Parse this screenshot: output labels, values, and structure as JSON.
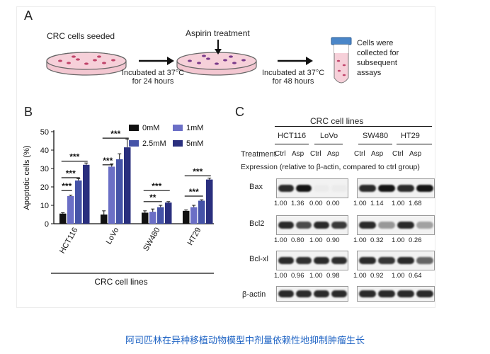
{
  "panel_a": {
    "letter": "A",
    "step1": "CRC cells seeded",
    "step2": "Aspirin treatment",
    "incubate1_line1": "Incubated at 37°C",
    "incubate1_line2": "for 24 hours",
    "incubate2_line1": "Incubated at 37°C",
    "incubate2_line2": "for 48 hours",
    "collected_lines": [
      "Cells were",
      "collected for",
      "subsequent",
      "assays"
    ]
  },
  "panel_b": {
    "letter": "B",
    "ylabel": "Apoptotic cells (%)",
    "xlabel": "CRC cell lines",
    "legend": [
      "0mM",
      "1mM",
      "2.5mM",
      "5mM"
    ],
    "significance": {
      "HCT116": [
        "***",
        "***",
        "***"
      ],
      "LoVo": [
        "***",
        "***"
      ],
      "SW480": [
        "**",
        "***"
      ],
      "HT29": [
        "***",
        "***"
      ]
    }
  },
  "chart_data": {
    "type": "bar",
    "categories": [
      "HCT116",
      "LoVo",
      "SW480",
      "HT29"
    ],
    "series": [
      {
        "name": "0mM",
        "values": [
          5.5,
          5,
          6,
          7
        ]
      },
      {
        "name": "1mM",
        "values": [
          15,
          31,
          6.5,
          9
        ]
      },
      {
        "name": "2.5mM",
        "values": [
          23.5,
          35,
          9,
          12.5
        ]
      },
      {
        "name": "5mM",
        "values": [
          32,
          41.5,
          11.5,
          24
        ]
      }
    ],
    "errors": [
      [
        0.5,
        2,
        1,
        0.5
      ],
      [
        0.5,
        1.5,
        1.5,
        1
      ],
      [
        1,
        3,
        1,
        0.5
      ],
      [
        1,
        4.5,
        0.5,
        0.8
      ]
    ],
    "colors": [
      "#111111",
      "#6b6fc6",
      "#4553a8",
      "#2a2f7e"
    ],
    "ylabel": "Apoptotic cells (%)",
    "xlabel": "CRC cell lines",
    "ylim": [
      0,
      50
    ],
    "yticks": [
      0,
      10,
      20,
      30,
      40,
      50
    ],
    "legend_position": "top-right"
  },
  "panel_c": {
    "letter": "C",
    "header": "CRC cell lines",
    "cell_lines": [
      "HCT116",
      "LoVo",
      "SW480",
      "HT29"
    ],
    "treatment_label": "Treatment",
    "treatments": [
      "Ctrl",
      "Asp",
      "Ctrl",
      "Asp",
      "Ctrl",
      "Asp",
      "Ctrl",
      "Asp"
    ],
    "expression_note": "Expression (relative to β-actin, compared to ctrl group)",
    "rows": [
      {
        "label": "Bax",
        "values": [
          "1.00",
          "1.36",
          "0.00",
          "0.00",
          "1.00",
          "1.14",
          "1.00",
          "1.68"
        ]
      },
      {
        "label": "Bcl2",
        "values": [
          "1.00",
          "0.80",
          "1.00",
          "0.90",
          "1.00",
          "0.32",
          "1.00",
          "0.26"
        ]
      },
      {
        "label": "Bcl-xl",
        "values": [
          "1.00",
          "0.96",
          "1.00",
          "0.98",
          "1.00",
          "0.92",
          "1.00",
          "0.64"
        ]
      },
      {
        "label": "β-actin",
        "values": []
      }
    ]
  },
  "caption": "阿司匹林在异种移植动物模型中剂量依赖性地抑制肿瘤生长"
}
